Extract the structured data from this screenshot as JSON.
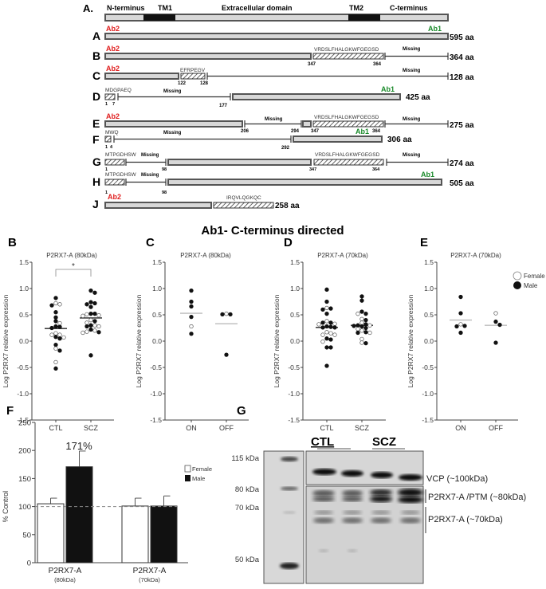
{
  "panelA": {
    "label": "A.",
    "domains": {
      "n_terminus": "N-terminus",
      "tm1": "TM1",
      "extracellular": "Extracellular domain",
      "tm2": "TM2",
      "c_terminus": "C-terminus"
    },
    "antibodies": {
      "ab1": "Ab1",
      "ab2": "Ab2",
      "ab1_color": "#1a8a2a",
      "ab2_color": "#e02020"
    },
    "missing_label": "Missing",
    "variants": [
      {
        "id": "A",
        "length": "595 aa"
      },
      {
        "id": "B",
        "length": "364 aa",
        "seq": "VRDSLFHALGKWFGEGSD",
        "pos_start": "347",
        "pos_end": "364"
      },
      {
        "id": "C",
        "length": "128 aa",
        "seq": "EFRPEGV",
        "pos_start": "122",
        "pos_end": "128"
      },
      {
        "id": "D",
        "length": "425 aa",
        "seq": "MDGPAEQ",
        "pos_start": "1",
        "pos_mid": "7",
        "pos_end": "177"
      },
      {
        "id": "E",
        "length": "275 aa",
        "seq": "VRDSLFHALGKWFGEGSD",
        "pos_a": "206",
        "pos_b": "294",
        "pos_start": "347",
        "pos_end": "364"
      },
      {
        "id": "F",
        "length": "306 aa",
        "seq": "MWQ",
        "pos_start": "1",
        "pos_mid": "4",
        "pos_end": "292"
      },
      {
        "id": "G",
        "length": "274 aa",
        "seq": "MTPGDHSW",
        "seq2": "VRDSLFHALGKWFGEGSD",
        "pos_start": "1",
        "pos_b": "98",
        "pos_c": "347",
        "pos_end": "364"
      },
      {
        "id": "H",
        "length": "505 aa",
        "seq": "MTPGDHSW",
        "pos_start": "1",
        "pos_b": "98"
      },
      {
        "id": "J",
        "length": "258 aa",
        "seq": "IRQVLQGKQC"
      }
    ]
  },
  "section_title": "Ab1- C-terminus directed",
  "legend": {
    "female": "Female",
    "male": "Male"
  },
  "chart_data": [
    {
      "panel": "B",
      "type": "scatter",
      "title": "P2RX7-A (80kDa)",
      "ylabel": "Log P2RX7 relative expression",
      "ylim": [
        -1.5,
        1.5
      ],
      "yticks": [
        "1.5",
        "1.0",
        "0.5",
        "0.0",
        "-0.5",
        "-1.0",
        "-1.5"
      ],
      "categories": [
        "CTL",
        "SCZ"
      ],
      "annotation": "*",
      "series": [
        {
          "name": "CTL",
          "median": 0.24,
          "male": [
            0.82,
            0.68,
            0.55,
            0.45,
            0.38,
            0.28,
            0.27,
            0.25,
            0.05,
            0.08,
            -0.07,
            -0.18,
            -0.52
          ],
          "female": [
            0.72,
            0.7,
            0.34,
            0.15,
            0.12,
            0.12,
            0.07,
            -0.14,
            -0.4
          ]
        },
        {
          "name": "SCZ",
          "median": 0.44,
          "male": [
            0.96,
            0.92,
            0.74,
            0.72,
            0.7,
            0.65,
            0.52,
            0.52,
            0.38,
            0.3,
            0.28,
            0.22,
            0.17,
            -0.27
          ],
          "female": [
            0.51,
            0.49,
            0.48,
            0.4,
            0.35,
            0.3,
            0.28,
            0.2,
            0.18,
            0.16
          ]
        }
      ]
    },
    {
      "panel": "C",
      "type": "scatter",
      "title": "P2RX7-A (80kDa)",
      "ylabel": "Log P2RX7 relative expression",
      "ylim": [
        -1.5,
        1.5
      ],
      "yticks": [
        "1.5",
        "1.0",
        "0.5",
        "0.0",
        "-0.5",
        "-1.0",
        "-1.5"
      ],
      "categories": [
        "ON",
        "OFF"
      ],
      "series": [
        {
          "name": "ON",
          "median": 0.53,
          "male": [
            0.96,
            0.75,
            0.66,
            0.46,
            0.14
          ],
          "female": [
            0.28
          ]
        },
        {
          "name": "OFF",
          "median": 0.33,
          "male": [
            0.51,
            0.51,
            -0.26
          ],
          "female": [
            0.52
          ]
        }
      ]
    },
    {
      "panel": "D",
      "type": "scatter",
      "title": "P2RX7-A (70kDa)",
      "ylabel": "Log P2RX7 relative expression",
      "ylim": [
        -1.5,
        1.5
      ],
      "yticks": [
        "1.5",
        "1.0",
        "0.5",
        "0.0",
        "-0.5",
        "-1.0",
        "-1.5"
      ],
      "categories": [
        "CTL",
        "SCZ"
      ],
      "series": [
        {
          "name": "CTL",
          "median": 0.26,
          "male": [
            0.98,
            0.75,
            0.62,
            0.6,
            0.52,
            0.35,
            0.35,
            0.28,
            0.27,
            0.26,
            0.26,
            0.05,
            0.03,
            -0.12,
            -0.12,
            -0.47
          ],
          "female": [
            0.63,
            0.38,
            0.33,
            0.32,
            0.17,
            0.15,
            0.12,
            0.12,
            -0.01
          ]
        },
        {
          "name": "SCZ",
          "median": 0.3,
          "male": [
            0.85,
            0.77,
            0.56,
            0.52,
            0.4,
            0.32,
            0.3,
            0.29,
            0.28,
            0.25,
            0.17,
            0.16,
            -0.04
          ],
          "female": [
            0.52,
            0.42,
            0.35,
            0.3,
            0.23,
            0.2,
            0.16,
            0.04,
            -0.03
          ]
        }
      ]
    },
    {
      "panel": "E",
      "type": "scatter",
      "title": "P2RX7-A (70kDa)",
      "ylabel": "Log P2RX7 relative expression",
      "ylim": [
        -1.5,
        1.5
      ],
      "yticks": [
        "1.5",
        "1.0",
        "0.5",
        "0.0",
        "-0.5",
        "-1.0",
        "-1.5"
      ],
      "categories": [
        "ON",
        "OFF"
      ],
      "series": [
        {
          "name": "ON",
          "median": 0.4,
          "male": [
            0.84,
            0.53,
            0.28,
            0.29,
            0.16
          ],
          "female": [
            0.32
          ]
        },
        {
          "name": "OFF",
          "median": 0.3,
          "male": [
            0.37,
            0.31,
            -0.03
          ],
          "female": [
            0.53
          ]
        }
      ]
    },
    {
      "panel": "F",
      "type": "bar",
      "title": "",
      "ylabel": "% Control",
      "ylim": [
        0,
        250
      ],
      "yticks": [
        "250",
        "200",
        "150",
        "100",
        "50",
        "0"
      ],
      "categories": [
        "P2RX7-A",
        "P2RX7-A"
      ],
      "category_sub": [
        "(80kDa)",
        "(70kDa)"
      ],
      "series": [
        {
          "name": "Female",
          "values": [
            105,
            101
          ],
          "errors": [
            10,
            14
          ]
        },
        {
          "name": "Male",
          "values": [
            171,
            101
          ],
          "errors": [
            28,
            18
          ]
        }
      ],
      "annotation": "171%",
      "reference_line": 100
    }
  ],
  "panelG": {
    "label": "G",
    "groups": [
      "CTL",
      "SCZ"
    ],
    "markers": [
      "115 kDa",
      "80 kDa",
      "70 kDa",
      "50 kDa"
    ],
    "band_labels": [
      "VCP (~100kDa)",
      "P2RX7-A /PTM (~80kDa)",
      "P2RX7-A (~70kDa)"
    ]
  }
}
